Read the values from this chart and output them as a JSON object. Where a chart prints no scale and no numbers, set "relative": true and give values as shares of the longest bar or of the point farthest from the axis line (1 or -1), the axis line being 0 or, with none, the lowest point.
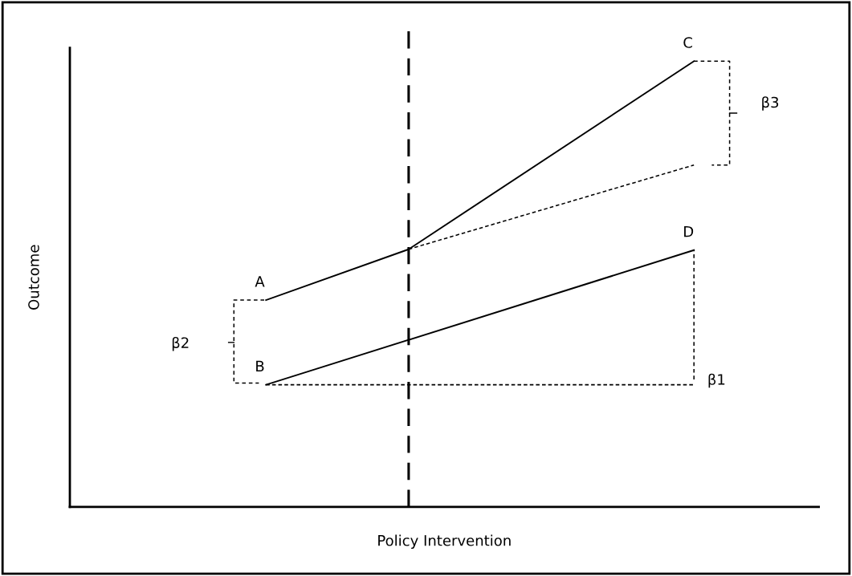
{
  "chart_data": {
    "type": "line",
    "relative": true,
    "xlabel": "Policy Intervention",
    "ylabel": "Outcome",
    "categories": [
      null,
      null,
      null,
      null,
      null,
      null,
      null,
      null,
      null,
      null,
      null,
      null,
      null,
      null,
      null,
      null,
      null,
      null,
      null,
      null,
      null
    ],
    "series": [
      {
        "color": "#000000",
        "line_style": "solid",
        "values": [
          null,
          null,
          null,
          null,
          null,
          0.464,
          null,
          null,
          null,
          0.578,
          null,
          null,
          null,
          null,
          null,
          null,
          null,
          1,
          null,
          null,
          null
        ]
      },
      {
        "color": "#000000",
        "line_style": "dashed",
        "values": [
          null,
          null,
          null,
          null,
          null,
          null,
          null,
          null,
          null,
          0.578,
          null,
          null,
          null,
          null,
          null,
          null,
          null,
          0.767,
          null,
          null,
          null
        ]
      },
      {
        "color": "#000000",
        "line_style": "solid",
        "values": [
          null,
          null,
          null,
          null,
          null,
          0.274,
          null,
          null,
          null,
          null,
          null,
          null,
          null,
          null,
          null,
          null,
          null,
          0.576,
          null,
          null,
          null
        ]
      },
      {
        "color": "#000000",
        "line_style": "dashed",
        "values": [
          null,
          null,
          null,
          null,
          null,
          0.274,
          null,
          null,
          null,
          null,
          null,
          null,
          null,
          null,
          null,
          null,
          null,
          0.274,
          null,
          null,
          null
        ]
      }
    ],
    "annotations": [
      "A",
      "B",
      "C",
      "D",
      "β1",
      "β2",
      "β3"
    ],
    "marker": "none"
  }
}
